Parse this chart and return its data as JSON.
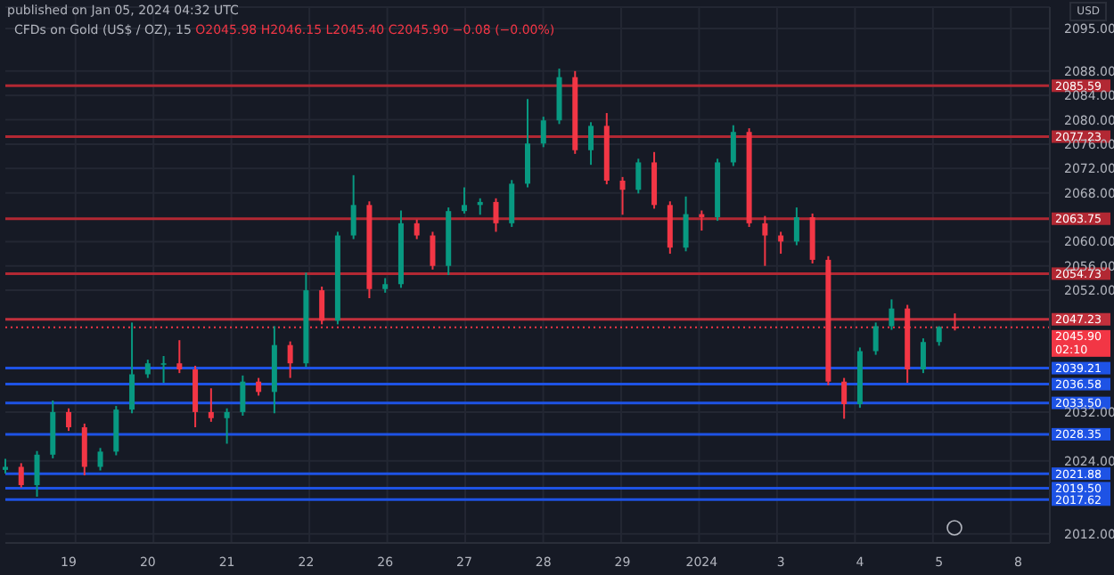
{
  "chart_data": {
    "type": "candlestick",
    "title": "CFDs on Gold (US$ / OZ), 15",
    "subtitle": "O2045.98 H2046.15 L2045.40 C2045.90 −0.08 (−0.00%)",
    "ylabel": "USD",
    "annotations": [
      "published on Jan 05, 2024 04:32 UTC",
      "02:10"
    ],
    "categories": [
      null,
      null,
      null,
      null,
      "19",
      null,
      null,
      null,
      null,
      "20",
      null,
      null,
      null,
      null,
      "21",
      null,
      null,
      null,
      null,
      "22",
      null,
      null,
      null,
      null,
      "26",
      null,
      null,
      null,
      null,
      "27",
      null,
      null,
      null,
      null,
      "28",
      null,
      null,
      null,
      null,
      "29",
      null,
      null,
      null,
      null,
      "2024",
      null,
      null,
      null,
      null,
      "3",
      null,
      null,
      null,
      null,
      "4",
      null,
      null,
      null,
      null,
      "5",
      null,
      null,
      null,
      null,
      "8",
      null,
      null
    ],
    "ohlc": [
      [
        2022.5,
        2024.3,
        2021.9,
        2023.0
      ],
      [
        2023.0,
        2023.6,
        2019.6,
        2020.0
      ],
      [
        2020.0,
        2025.6,
        2018.1,
        2025.0
      ],
      [
        2025.0,
        2033.9,
        2024.4,
        2032.0
      ],
      [
        2032.0,
        2032.6,
        2028.9,
        2029.5
      ],
      [
        2029.5,
        2030.1,
        2021.6,
        2023.0
      ],
      [
        2023.0,
        2026.1,
        2022.4,
        2025.5
      ],
      [
        2025.5,
        2033.0,
        2024.9,
        2032.4
      ],
      [
        2032.4,
        2046.7,
        2031.8,
        2038.2
      ],
      [
        2038.2,
        2040.6,
        2037.6,
        2040.0
      ],
      [
        2040.0,
        2041.2,
        2036.8,
        2040.0
      ],
      [
        2040.0,
        2043.8,
        2038.4,
        2039.0
      ],
      [
        2039.0,
        2039.6,
        2029.5,
        2032.0
      ],
      [
        2032.0,
        2035.9,
        2030.4,
        2031.0
      ],
      [
        2031.0,
        2032.6,
        2026.8,
        2032.0
      ],
      [
        2032.0,
        2038.0,
        2031.4,
        2037.0
      ],
      [
        2037.0,
        2037.6,
        2034.7,
        2035.3
      ],
      [
        2035.3,
        2046.1,
        2031.8,
        2043.0
      ],
      [
        2043.0,
        2043.6,
        2037.6,
        2040.0
      ],
      [
        2040.0,
        2054.9,
        2039.4,
        2052.0
      ],
      [
        2052.0,
        2052.6,
        2046.4,
        2047.0
      ],
      [
        2047.0,
        2061.6,
        2046.4,
        2061.0
      ],
      [
        2061.0,
        2070.9,
        2060.4,
        2066.0
      ],
      [
        2066.0,
        2066.6,
        2050.7,
        2052.2
      ],
      [
        2052.2,
        2054.0,
        2051.6,
        2053.0
      ],
      [
        2053.0,
        2065.1,
        2052.4,
        2063.0
      ],
      [
        2063.0,
        2063.6,
        2060.4,
        2061.0
      ],
      [
        2061.0,
        2061.6,
        2055.4,
        2056.0
      ],
      [
        2056.0,
        2065.6,
        2054.5,
        2065.0
      ],
      [
        2065.0,
        2068.9,
        2064.6,
        2066.0
      ],
      [
        2066.0,
        2067.1,
        2064.4,
        2066.5
      ],
      [
        2066.5,
        2067.1,
        2061.6,
        2063.0
      ],
      [
        2063.0,
        2070.1,
        2062.4,
        2069.5
      ],
      [
        2069.5,
        2083.4,
        2068.9,
        2076.1
      ],
      [
        2076.1,
        2080.5,
        2075.5,
        2079.9
      ],
      [
        2079.9,
        2088.4,
        2079.3,
        2087.0
      ],
      [
        2087.0,
        2088.0,
        2074.4,
        2075.0
      ],
      [
        2075.0,
        2079.6,
        2072.6,
        2079.0
      ],
      [
        2079.0,
        2081.1,
        2069.4,
        2070.0
      ],
      [
        2070.0,
        2070.6,
        2064.4,
        2068.5
      ],
      [
        2068.5,
        2073.6,
        2067.9,
        2073.0
      ],
      [
        2073.0,
        2074.7,
        2065.4,
        2066.0
      ],
      [
        2066.0,
        2066.6,
        2058.0,
        2059.0
      ],
      [
        2059.0,
        2067.4,
        2058.4,
        2064.5
      ],
      [
        2064.5,
        2065.1,
        2061.8,
        2064.0
      ],
      [
        2064.0,
        2073.6,
        2063.4,
        2073.0
      ],
      [
        2073.0,
        2079.1,
        2072.4,
        2078.0
      ],
      [
        2078.0,
        2078.6,
        2062.4,
        2063.0
      ],
      [
        2063.0,
        2064.2,
        2056.0,
        2061.0
      ],
      [
        2061.0,
        2061.6,
        2058.0,
        2060.0
      ],
      [
        2060.0,
        2065.6,
        2059.4,
        2064.0
      ],
      [
        2064.0,
        2064.6,
        2056.4,
        2057.0
      ],
      [
        2057.0,
        2057.6,
        2036.4,
        2037.0
      ],
      [
        2037.0,
        2037.6,
        2030.9,
        2033.3
      ],
      [
        2033.3,
        2042.6,
        2032.7,
        2042.0
      ],
      [
        2042.0,
        2046.7,
        2041.4,
        2046.1
      ],
      [
        2046.1,
        2050.5,
        2045.5,
        2049.0
      ],
      [
        2049.0,
        2049.6,
        2036.8,
        2039.0
      ],
      [
        2039.0,
        2044.1,
        2038.4,
        2043.5
      ],
      [
        2043.5,
        2046.1,
        2042.9,
        2045.98
      ],
      [
        2045.98,
        2048.2,
        2045.4,
        2045.9
      ],
      null,
      null,
      null,
      null,
      null,
      null
    ],
    "ylim": [
      2010.5,
      2098.5
    ],
    "yticks": [
      {
        "value": 2012,
        "label": "2012.00"
      },
      {
        "value": 2024,
        "label": "2024.00"
      },
      {
        "value": 2032,
        "label": "2032.00"
      },
      {
        "value": 2052,
        "label": "2052.00"
      },
      {
        "value": 2056,
        "label": "2056.00"
      },
      {
        "value": 2060,
        "label": "2060.00"
      },
      {
        "value": 2068,
        "label": "2068.00"
      },
      {
        "value": 2072,
        "label": "2072.00"
      },
      {
        "value": 2076,
        "label": "2076.00"
      },
      {
        "value": 2080,
        "label": "2080.00"
      },
      {
        "value": 2084,
        "label": "2084.00"
      },
      {
        "value": 2088,
        "label": "2088.00"
      },
      {
        "value": 2095,
        "label": "2095.00"
      }
    ],
    "grid": true,
    "ref_lines": [
      {
        "axis": "y",
        "value": 2085.59,
        "label": "2085.59",
        "color": "#b22833"
      },
      {
        "axis": "y",
        "value": 2077.23,
        "label": "2077.23",
        "color": "#b22833"
      },
      {
        "axis": "y",
        "value": 2063.75,
        "label": "2063.75",
        "color": "#b22833"
      },
      {
        "axis": "y",
        "value": 2054.73,
        "label": "2054.73",
        "color": "#b22833"
      },
      {
        "axis": "y",
        "value": 2047.23,
        "label": "2047.23",
        "color": "#c2303c"
      },
      {
        "axis": "y",
        "value": 2045.9,
        "label": "2045.90",
        "color": "#f23645",
        "line_style": "dotted"
      },
      {
        "axis": "y",
        "value": 2039.21,
        "label": "2039.21",
        "color": "#1e53e5"
      },
      {
        "axis": "y",
        "value": 2036.58,
        "label": "2036.58",
        "color": "#1e53e5"
      },
      {
        "axis": "y",
        "value": 2033.5,
        "label": "2033.50",
        "color": "#1e53e5"
      },
      {
        "axis": "y",
        "value": 2028.35,
        "label": "2028.35",
        "color": "#1e53e5"
      },
      {
        "axis": "y",
        "value": 2021.88,
        "label": "2021.88",
        "color": "#1e53e5"
      },
      {
        "axis": "y",
        "value": 2019.5,
        "label": "2019.50",
        "color": "#1e53e5"
      },
      {
        "axis": "y",
        "value": 2017.62,
        "label": "2017.62",
        "color": "#1e53e5"
      }
    ]
  }
}
